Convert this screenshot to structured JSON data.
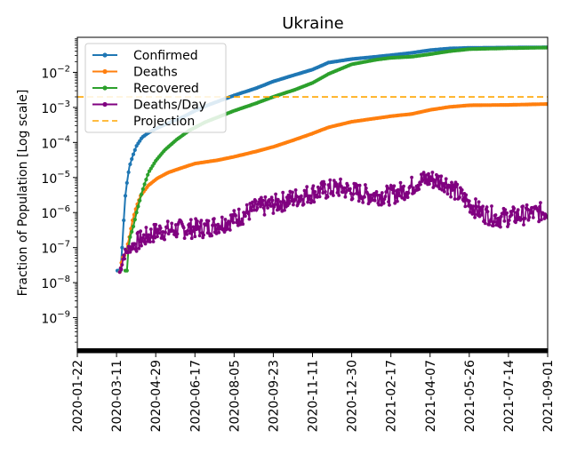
{
  "chart_data": {
    "type": "line",
    "title": "Ukraine",
    "xlabel": "",
    "ylabel": "Fraction of Population [Log scale]",
    "yscale": "log",
    "xlim": [
      "2020-01-22",
      "2021-09-01"
    ],
    "ylim": [
      1e-10,
      0.1
    ],
    "x_tick_labels": [
      "2020-01-22",
      "2020-03-11",
      "2020-04-29",
      "2020-06-17",
      "2020-08-05",
      "2020-09-23",
      "2020-11-11",
      "2020-12-30",
      "2021-02-17",
      "2021-04-07",
      "2021-05-26",
      "2021-07-14",
      "2021-09-01"
    ],
    "y_ticks": [
      {
        "value": 1e-09,
        "base": "10",
        "exp": "−9"
      },
      {
        "value": 1e-08,
        "base": "10",
        "exp": "−8"
      },
      {
        "value": 1e-07,
        "base": "10",
        "exp": "−7"
      },
      {
        "value": 1e-06,
        "base": "10",
        "exp": "−6"
      },
      {
        "value": 1e-05,
        "base": "10",
        "exp": "−5"
      },
      {
        "value": 0.0001,
        "base": "10",
        "exp": "−4"
      },
      {
        "value": 0.001,
        "base": "10",
        "exp": "−3"
      },
      {
        "value": 0.01,
        "base": "10",
        "exp": "−2"
      }
    ],
    "legend_position": "top-left",
    "series": [
      {
        "name": "Confirmed",
        "color": "#1f77b4",
        "style": "line-dots",
        "points": [
          [
            "2020-03-12",
            2.2e-08
          ],
          [
            "2020-03-14",
            2.2e-08
          ],
          [
            "2020-03-16",
            2.2e-08
          ],
          [
            "2020-03-18",
            1e-07
          ],
          [
            "2020-03-20",
            6e-07
          ],
          [
            "2020-03-22",
            3e-06
          ],
          [
            "2020-03-24",
            7e-06
          ],
          [
            "2020-03-27",
            2e-05
          ],
          [
            "2020-03-31",
            4e-05
          ],
          [
            "2020-04-05",
            8e-05
          ],
          [
            "2020-04-12",
            0.00014
          ],
          [
            "2020-04-20",
            0.00019
          ],
          [
            "2020-05-01",
            0.00026
          ],
          [
            "2020-05-15",
            0.00036
          ],
          [
            "2020-06-01",
            0.00052
          ],
          [
            "2020-06-17",
            0.0008
          ],
          [
            "2020-07-05",
            0.0012
          ],
          [
            "2020-08-05",
            0.0022
          ],
          [
            "2020-09-01",
            0.0035
          ],
          [
            "2020-09-23",
            0.0055
          ],
          [
            "2020-10-20",
            0.0085
          ],
          [
            "2020-11-11",
            0.012
          ],
          [
            "2020-12-01",
            0.019
          ],
          [
            "2020-12-30",
            0.024
          ],
          [
            "2021-01-30",
            0.028
          ],
          [
            "2021-02-17",
            0.031
          ],
          [
            "2021-03-15",
            0.036
          ],
          [
            "2021-04-07",
            0.043
          ],
          [
            "2021-05-01",
            0.048
          ],
          [
            "2021-05-26",
            0.05
          ],
          [
            "2021-07-14",
            0.051
          ],
          [
            "2021-09-01",
            0.052
          ]
        ]
      },
      {
        "name": "Deaths",
        "color": "#ff7f0e",
        "style": "line-dots",
        "points": [
          [
            "2020-03-15",
            2e-08
          ],
          [
            "2020-03-18",
            5e-08
          ],
          [
            "2020-03-21",
            6e-08
          ],
          [
            "2020-03-24",
            1e-07
          ],
          [
            "2020-03-27",
            2e-07
          ],
          [
            "2020-03-31",
            6e-07
          ],
          [
            "2020-04-05",
            1.5e-06
          ],
          [
            "2020-04-10",
            3e-06
          ],
          [
            "2020-04-20",
            6e-06
          ],
          [
            "2020-05-01",
            9.5e-06
          ],
          [
            "2020-05-15",
            1.4e-05
          ],
          [
            "2020-06-01",
            1.9e-05
          ],
          [
            "2020-06-17",
            2.5e-05
          ],
          [
            "2020-07-15",
            3.1e-05
          ],
          [
            "2020-08-05",
            3.9e-05
          ],
          [
            "2020-09-01",
            5.5e-05
          ],
          [
            "2020-09-23",
            7.5e-05
          ],
          [
            "2020-10-15",
            0.00011
          ],
          [
            "2020-11-11",
            0.00018
          ],
          [
            "2020-12-01",
            0.00027
          ],
          [
            "2020-12-30",
            0.00039
          ],
          [
            "2021-01-30",
            0.00049
          ],
          [
            "2021-02-17",
            0.00056
          ],
          [
            "2021-03-15",
            0.00065
          ],
          [
            "2021-04-07",
            0.00085
          ],
          [
            "2021-05-01",
            0.00103
          ],
          [
            "2021-05-26",
            0.00115
          ],
          [
            "2021-07-14",
            0.00118
          ],
          [
            "2021-09-01",
            0.00125
          ]
        ]
      },
      {
        "name": "Recovered",
        "color": "#2ca02c",
        "style": "line-dots",
        "points": [
          [
            "2020-03-22",
            2.2e-08
          ],
          [
            "2020-03-24",
            2.2e-08
          ],
          [
            "2020-03-26",
            1e-07
          ],
          [
            "2020-03-28",
            2e-07
          ],
          [
            "2020-04-01",
            4e-07
          ],
          [
            "2020-04-05",
            1e-06
          ],
          [
            "2020-04-12",
            4e-06
          ],
          [
            "2020-04-20",
            1.4e-05
          ],
          [
            "2020-04-29",
            3e-05
          ],
          [
            "2020-05-10",
            6e-05
          ],
          [
            "2020-05-25",
            0.00012
          ],
          [
            "2020-06-10",
            0.00022
          ],
          [
            "2020-06-30",
            0.00038
          ],
          [
            "2020-08-05",
            0.0008
          ],
          [
            "2020-09-01",
            0.0013
          ],
          [
            "2020-09-23",
            0.002
          ],
          [
            "2020-10-20",
            0.0032
          ],
          [
            "2020-11-11",
            0.005
          ],
          [
            "2020-12-01",
            0.009
          ],
          [
            "2020-12-30",
            0.017
          ],
          [
            "2021-01-30",
            0.023
          ],
          [
            "2021-02-17",
            0.026
          ],
          [
            "2021-03-15",
            0.028
          ],
          [
            "2021-04-07",
            0.033
          ],
          [
            "2021-05-01",
            0.04
          ],
          [
            "2021-05-26",
            0.046
          ],
          [
            "2021-07-14",
            0.049
          ],
          [
            "2021-09-01",
            0.051
          ]
        ]
      },
      {
        "name": "Deaths/Day",
        "color": "#800080",
        "style": "noisy-dots",
        "anchors": [
          [
            "2020-03-15",
            2e-08
          ],
          [
            "2020-03-20",
            6e-08
          ],
          [
            "2020-03-28",
            1e-07
          ],
          [
            "2020-04-05",
            1.4e-07
          ],
          [
            "2020-04-15",
            1.9e-07
          ],
          [
            "2020-05-01",
            2.9e-07
          ],
          [
            "2020-06-01",
            3.4e-07
          ],
          [
            "2020-07-01",
            3.6e-07
          ],
          [
            "2020-08-05",
            6.5e-07
          ],
          [
            "2020-09-01",
            1.3e-06
          ],
          [
            "2020-09-23",
            1.7e-06
          ],
          [
            "2020-10-20",
            2.6e-06
          ],
          [
            "2020-11-11",
            3.6e-06
          ],
          [
            "2020-12-01",
            4.6e-06
          ],
          [
            "2020-12-15",
            5e-06
          ],
          [
            "2020-12-30",
            4e-06
          ],
          [
            "2021-01-20",
            3.2e-06
          ],
          [
            "2021-02-17",
            3.1e-06
          ],
          [
            "2021-03-10",
            4.8e-06
          ],
          [
            "2021-03-25",
            8e-06
          ],
          [
            "2021-04-07",
            9e-06
          ],
          [
            "2021-04-25",
            7.5e-06
          ],
          [
            "2021-05-10",
            3.8e-06
          ],
          [
            "2021-05-26",
            1.8e-06
          ],
          [
            "2021-06-10",
            1e-06
          ],
          [
            "2021-07-01",
            7e-07
          ],
          [
            "2021-07-14",
            7.5e-07
          ],
          [
            "2021-08-10",
            9e-07
          ],
          [
            "2021-09-01",
            1.1e-06
          ]
        ]
      },
      {
        "name": "Projection",
        "color": "#ffa500",
        "style": "dashed-hline",
        "value": 0.002
      }
    ]
  }
}
